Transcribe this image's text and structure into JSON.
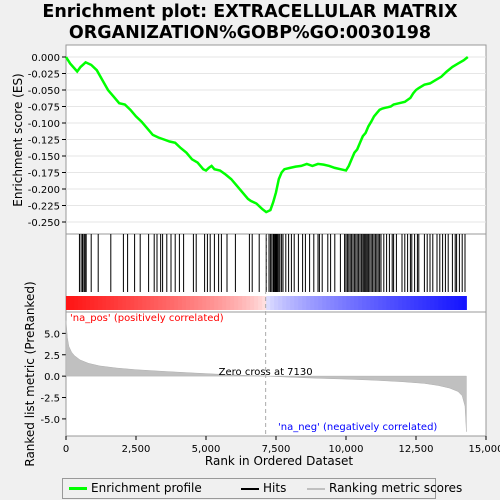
{
  "title_line1": "Enrichment plot: EXTRACELLULAR MATRIX",
  "title_line2": "ORGANIZATION%GOBP%GO:0030198",
  "colors": {
    "enrichment": "#00ff00",
    "hits": "#000000",
    "metric_fill": "#c0c0c0",
    "pos_label": "#ff0000",
    "neg_label": "#0000ff",
    "zero_line": "#aaaaaa"
  },
  "legend": {
    "enrichment": "Enrichment profile",
    "hits": "Hits",
    "metric": "Ranking metric scores"
  },
  "chart_data": {
    "type": "line",
    "xlabel": "Rank in Ordered Dataset",
    "xlim": [
      0,
      15000
    ],
    "x_ticks": [
      0,
      2500,
      5000,
      7500,
      10000,
      12500,
      15000
    ],
    "x_tick_labels": [
      "0",
      "2,500",
      "5,000",
      "7,500",
      "10,000",
      "12,500",
      "15,000"
    ],
    "n_genes": 14300,
    "es_panel": {
      "ylabel": "Enrichment score (ES)",
      "ylim": [
        -0.25,
        0.0
      ],
      "y_ticks": [
        0.0,
        -0.025,
        -0.05,
        -0.075,
        -0.1,
        -0.125,
        -0.15,
        -0.175,
        -0.2,
        -0.225,
        -0.25
      ],
      "y_tick_labels": [
        "0.000",
        "-0.025",
        "-0.050",
        "-0.075",
        "-0.100",
        "-0.125",
        "-0.150",
        "-0.175",
        "-0.200",
        "-0.225",
        "-0.250"
      ],
      "series": [
        {
          "name": "Enrichment profile",
          "x": [
            0,
            150,
            400,
            520,
            600,
            700,
            900,
            1100,
            1300,
            1500,
            1700,
            1900,
            2100,
            2300,
            2500,
            2700,
            2900,
            3100,
            3300,
            3500,
            3700,
            3900,
            4100,
            4300,
            4500,
            4700,
            4900,
            5000,
            5100,
            5200,
            5300,
            5500,
            5700,
            5900,
            6100,
            6300,
            6500,
            6600,
            6800,
            7000,
            7150,
            7300,
            7400,
            7500,
            7600,
            7700,
            7800,
            8000,
            8200,
            8400,
            8600,
            8800,
            9000,
            9200,
            9400,
            9600,
            9800,
            10000,
            10100,
            10200,
            10300,
            10400,
            10500,
            10600,
            10700,
            10800,
            10900,
            11000,
            11100,
            11200,
            11300,
            11400,
            11500,
            11600,
            11700,
            11900,
            12100,
            12300,
            12400,
            12500,
            12600,
            12800,
            13000,
            13200,
            13400,
            13600,
            13800,
            14000,
            14200,
            14350
          ],
          "y": [
            0.0,
            -0.01,
            -0.022,
            -0.015,
            -0.012,
            -0.008,
            -0.012,
            -0.02,
            -0.035,
            -0.05,
            -0.06,
            -0.07,
            -0.072,
            -0.08,
            -0.09,
            -0.098,
            -0.108,
            -0.118,
            -0.122,
            -0.125,
            -0.128,
            -0.13,
            -0.138,
            -0.145,
            -0.155,
            -0.16,
            -0.17,
            -0.172,
            -0.168,
            -0.165,
            -0.17,
            -0.172,
            -0.178,
            -0.185,
            -0.195,
            -0.205,
            -0.215,
            -0.218,
            -0.222,
            -0.23,
            -0.235,
            -0.232,
            -0.22,
            -0.205,
            -0.185,
            -0.175,
            -0.17,
            -0.168,
            -0.166,
            -0.165,
            -0.162,
            -0.165,
            -0.162,
            -0.163,
            -0.165,
            -0.168,
            -0.17,
            -0.172,
            -0.165,
            -0.155,
            -0.145,
            -0.14,
            -0.13,
            -0.12,
            -0.115,
            -0.105,
            -0.098,
            -0.09,
            -0.085,
            -0.08,
            -0.078,
            -0.077,
            -0.076,
            -0.075,
            -0.072,
            -0.07,
            -0.068,
            -0.062,
            -0.055,
            -0.05,
            -0.047,
            -0.042,
            -0.04,
            -0.035,
            -0.03,
            -0.022,
            -0.015,
            -0.01,
            -0.005,
            0.0
          ]
        }
      ]
    },
    "hits": [
      480,
      540,
      590,
      640,
      680,
      720,
      900,
      1150,
      1600,
      2050,
      2200,
      2450,
      2650,
      2950,
      3150,
      3250,
      3380,
      3450,
      3600,
      3750,
      3900,
      4050,
      4200,
      4550,
      4650,
      4950,
      5050,
      5150,
      5300,
      5450,
      5550,
      5750,
      6050,
      6550,
      6650,
      6900,
      7150,
      7250,
      7300,
      7350,
      7400,
      7420,
      7450,
      7480,
      7500,
      7530,
      7560,
      7600,
      7640,
      7700,
      7750,
      7850,
      7950,
      8050,
      8150,
      8300,
      8450,
      8550,
      8700,
      8850,
      9000,
      9050,
      9150,
      9350,
      9450,
      9600,
      9800,
      9950,
      10000,
      10050,
      10100,
      10150,
      10200,
      10250,
      10300,
      10350,
      10400,
      10450,
      10500,
      10550,
      10600,
      10640,
      10680,
      10720,
      10760,
      10800,
      10850,
      10900,
      10950,
      11000,
      11050,
      11100,
      11150,
      11200,
      11250,
      11350,
      11450,
      11550,
      11650,
      11700,
      11800,
      12000,
      12100,
      12200,
      12300,
      12350,
      12450,
      12550,
      12600,
      12800,
      12900,
      13000,
      13100,
      13250,
      13350,
      13450,
      13550,
      13650,
      13800,
      13900,
      13950,
      14050,
      14150,
      14250
    ],
    "metric_panel": {
      "ylabel": "Ranked list metric (PreRanked)",
      "ylim": [
        -7.0,
        7.5
      ],
      "y_ticks": [
        5.0,
        2.5,
        0.0,
        -2.5,
        -5.0
      ],
      "y_tick_labels": [
        "5.0",
        "2.5",
        "0.0",
        "-2.5",
        "-5.0"
      ],
      "x": [
        0,
        50,
        100,
        200,
        300,
        500,
        800,
        1200,
        1800,
        2500,
        3500,
        4500,
        5500,
        6500,
        7130,
        8000,
        9000,
        10000,
        11000,
        12000,
        12800,
        13300,
        13700,
        14000,
        14150,
        14250,
        14300
      ],
      "values": [
        6.5,
        4.5,
        3.5,
        2.8,
        2.4,
        1.9,
        1.5,
        1.2,
        0.95,
        0.75,
        0.55,
        0.38,
        0.22,
        0.08,
        0.0,
        -0.12,
        -0.25,
        -0.35,
        -0.48,
        -0.65,
        -0.85,
        -1.1,
        -1.4,
        -1.8,
        -2.3,
        -3.5,
        -6.5
      ],
      "zero_cross_label": "Zero cross at 7130",
      "zero_cross": 7130,
      "pos_label": "'na_pos' (positively correlated)",
      "neg_label": "'na_neg' (negatively correlated)"
    }
  }
}
